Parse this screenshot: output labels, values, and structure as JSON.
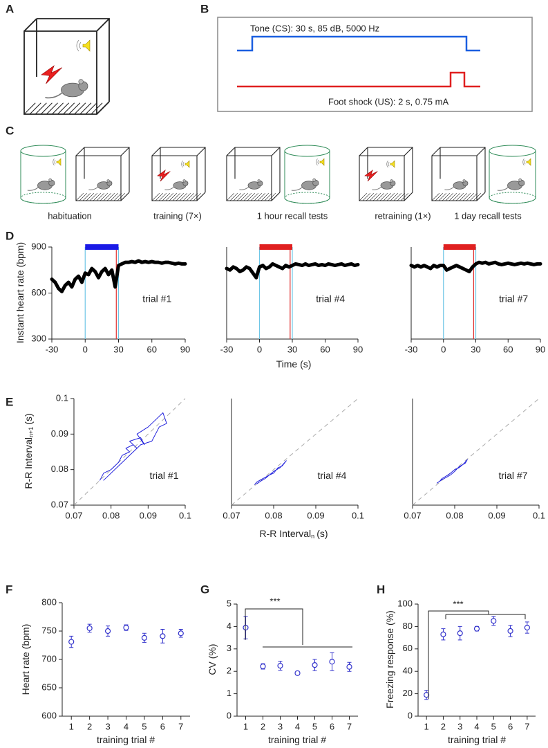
{
  "panels": [
    "A",
    "B",
    "C",
    "D",
    "E",
    "F",
    "G",
    "H"
  ],
  "diagram_b": {
    "tone_label": "Tone (CS): 30 s, 85 dB, 5000 Hz",
    "shock_label": "Foot shock (US): 2 s, 0.75 mA"
  },
  "diagram_c": {
    "labels": [
      "habituation",
      "training (7×)",
      "1 hour recall tests",
      "retraining (1×)",
      "1 day recall tests"
    ]
  },
  "chart_data": [
    {
      "type": "line",
      "label": "trial #1",
      "ylabel": "Instant heart rate (bpm)",
      "color": "#000000",
      "line_width": 5,
      "x": [
        -30,
        -27,
        -24,
        -21,
        -18,
        -15,
        -12,
        -9,
        -6,
        -3,
        0,
        3,
        6,
        9,
        12,
        15,
        18,
        21,
        24,
        27,
        30,
        33,
        36,
        39,
        42,
        45,
        48,
        51,
        54,
        57,
        60,
        63,
        66,
        69,
        72,
        75,
        78,
        81,
        84,
        87,
        90
      ],
      "values": [
        690,
        670,
        630,
        610,
        650,
        670,
        640,
        690,
        710,
        670,
        730,
        720,
        760,
        740,
        700,
        740,
        760,
        720,
        750,
        640,
        780,
        790,
        800,
        800,
        805,
        800,
        810,
        800,
        805,
        800,
        805,
        800,
        800,
        795,
        800,
        800,
        795,
        790,
        795,
        790,
        790
      ],
      "xlim": [
        -30,
        90
      ],
      "ylim": [
        300,
        900
      ],
      "xticks": [
        -30,
        0,
        30,
        60,
        90
      ],
      "yticks": [
        300,
        600,
        900
      ],
      "bar": [
        0,
        30
      ],
      "bar_color": "#1a1ae6",
      "vlines": [
        {
          "x": 0,
          "color": "#6ec6e6"
        },
        {
          "x": 28,
          "color": "#e03030"
        },
        {
          "x": 30,
          "color": "#6ec6e6"
        }
      ]
    },
    {
      "type": "line",
      "label": "trial #4",
      "xlabel": "Time (s)",
      "color": "#000000",
      "line_width": 5,
      "x": [
        -30,
        -27,
        -24,
        -21,
        -18,
        -15,
        -12,
        -9,
        -6,
        -3,
        0,
        3,
        6,
        9,
        12,
        15,
        18,
        21,
        24,
        27,
        30,
        33,
        36,
        39,
        42,
        45,
        48,
        51,
        54,
        57,
        60,
        63,
        66,
        69,
        72,
        75,
        78,
        81,
        84,
        87,
        90
      ],
      "values": [
        760,
        750,
        770,
        760,
        740,
        750,
        770,
        760,
        730,
        700,
        770,
        780,
        760,
        770,
        790,
        780,
        770,
        760,
        780,
        770,
        780,
        790,
        785,
        780,
        790,
        780,
        785,
        790,
        780,
        785,
        780,
        790,
        785,
        780,
        785,
        790,
        780,
        785,
        790,
        780,
        785
      ],
      "xlim": [
        -30,
        90
      ],
      "ylim": [
        300,
        900
      ],
      "xticks": [
        -30,
        0,
        30,
        60,
        90
      ],
      "bar": [
        0,
        30
      ],
      "bar_color": "#e02020",
      "vlines": [
        {
          "x": 0,
          "color": "#6ec6e6"
        },
        {
          "x": 28,
          "color": "#e03030"
        },
        {
          "x": 30,
          "color": "#6ec6e6"
        }
      ]
    },
    {
      "type": "line",
      "label": "trial #7",
      "color": "#000000",
      "line_width": 5,
      "x": [
        -30,
        -27,
        -24,
        -21,
        -18,
        -15,
        -12,
        -9,
        -6,
        -3,
        0,
        3,
        6,
        9,
        12,
        15,
        18,
        21,
        24,
        27,
        30,
        33,
        36,
        39,
        42,
        45,
        48,
        51,
        54,
        57,
        60,
        63,
        66,
        69,
        72,
        75,
        78,
        81,
        84,
        87,
        90
      ],
      "values": [
        780,
        770,
        780,
        770,
        780,
        770,
        760,
        780,
        770,
        780,
        780,
        750,
        760,
        770,
        780,
        770,
        760,
        750,
        740,
        770,
        790,
        800,
        795,
        800,
        790,
        795,
        800,
        790,
        785,
        790,
        795,
        790,
        785,
        790,
        795,
        790,
        795,
        790,
        785,
        790,
        790
      ],
      "xlim": [
        -30,
        90
      ],
      "ylim": [
        300,
        900
      ],
      "xticks": [
        -30,
        0,
        30,
        60,
        90
      ],
      "bar": [
        0,
        30
      ],
      "bar_color": "#e02020",
      "vlines": [
        {
          "x": 0,
          "color": "#6ec6e6"
        },
        {
          "x": 28,
          "color": "#e03030"
        },
        {
          "x": 30,
          "color": "#6ec6e6"
        }
      ]
    },
    {
      "type": "line",
      "label": "trial #1",
      "ylabel": "R-R Interval",
      "ylabel_sub": "n+1",
      "ylabel_unit": "(s)",
      "color": "#2222dd",
      "line_width": 1,
      "diagonal": true,
      "x": [
        0.077,
        0.078,
        0.08,
        0.082,
        0.083,
        0.085,
        0.084,
        0.086,
        0.087,
        0.085,
        0.088,
        0.089,
        0.087,
        0.09,
        0.092,
        0.094,
        0.095,
        0.093,
        0.091,
        0.088,
        0.086,
        0.084,
        0.082,
        0.08,
        0.078
      ],
      "values": [
        0.077,
        0.079,
        0.08,
        0.082,
        0.084,
        0.085,
        0.086,
        0.087,
        0.086,
        0.088,
        0.089,
        0.087,
        0.09,
        0.092,
        0.094,
        0.096,
        0.093,
        0.092,
        0.088,
        0.087,
        0.085,
        0.083,
        0.081,
        0.079,
        0.077
      ],
      "xlim": [
        0.07,
        0.1
      ],
      "ylim": [
        0.07,
        0.1
      ],
      "xticks": [
        0.07,
        0.08,
        0.09,
        0.1
      ],
      "yticks": [
        0.07,
        0.08,
        0.09,
        0.1
      ]
    },
    {
      "type": "line",
      "label": "trial #4",
      "xlabel": "R-R Interval",
      "xlabel_sub": "n",
      "xlabel_unit": "(s)",
      "color": "#2222dd",
      "line_width": 1,
      "diagonal": true,
      "x": [
        0.0755,
        0.076,
        0.077,
        0.078,
        0.079,
        0.08,
        0.081,
        0.082,
        0.083,
        0.0815,
        0.08,
        0.079,
        0.078,
        0.077,
        0.076
      ],
      "values": [
        0.0758,
        0.0765,
        0.0772,
        0.0778,
        0.0785,
        0.079,
        0.0805,
        0.081,
        0.0825,
        0.0805,
        0.0795,
        0.0785,
        0.0775,
        0.0768,
        0.076
      ],
      "xlim": [
        0.07,
        0.1
      ],
      "ylim": [
        0.07,
        0.1
      ],
      "xticks": [
        0.07,
        0.08,
        0.09,
        0.1
      ]
    },
    {
      "type": "line",
      "label": "trial #7",
      "color": "#2222dd",
      "line_width": 1,
      "diagonal": true,
      "x": [
        0.0758,
        0.0765,
        0.077,
        0.078,
        0.079,
        0.08,
        0.081,
        0.082,
        0.083,
        0.0825,
        0.081,
        0.08,
        0.079,
        0.078,
        0.077,
        0.0762
      ],
      "values": [
        0.0762,
        0.0768,
        0.0775,
        0.0782,
        0.079,
        0.08,
        0.0805,
        0.0815,
        0.0828,
        0.0818,
        0.0808,
        0.0795,
        0.0785,
        0.0778,
        0.0772,
        0.0765
      ],
      "xlim": [
        0.07,
        0.1
      ],
      "ylim": [
        0.07,
        0.1
      ],
      "xticks": [
        0.07,
        0.08,
        0.09,
        0.1
      ]
    },
    {
      "type": "scatter",
      "ylabel": "Heart rate (bpm)",
      "xlabel": "training trial #",
      "color": "#3333cc",
      "x": [
        1,
        2,
        3,
        4,
        5,
        6,
        7
      ],
      "values": [
        731,
        755,
        750,
        756,
        738,
        741,
        746
      ],
      "errors": [
        10,
        7,
        9,
        5,
        8,
        12,
        7
      ],
      "xlim": [
        0.5,
        7.5
      ],
      "ylim": [
        600,
        800
      ],
      "xticks": [
        1,
        2,
        3,
        4,
        5,
        6,
        7
      ],
      "yticks": [
        600,
        650,
        700,
        750,
        800
      ]
    },
    {
      "type": "scatter",
      "ylabel": "CV (%)",
      "xlabel": "training trial #",
      "color": "#3333cc",
      "annotation": "***",
      "x": [
        1,
        2,
        3,
        4,
        5,
        6,
        7
      ],
      "values": [
        3.95,
        2.22,
        2.25,
        1.92,
        2.28,
        2.43,
        2.2
      ],
      "errors": [
        0.5,
        0.12,
        0.2,
        0.08,
        0.25,
        0.4,
        0.2
      ],
      "xlim": [
        0.5,
        7.5
      ],
      "ylim": [
        0,
        5
      ],
      "xticks": [
        1,
        2,
        3,
        4,
        5,
        6,
        7
      ],
      "yticks": [
        0,
        1,
        2,
        3,
        4,
        5
      ]
    },
    {
      "type": "scatter",
      "ylabel": "Freezing response (%)",
      "xlabel": "training trial #",
      "color": "#3333cc",
      "annotation": "***",
      "x": [
        1,
        2,
        3,
        4,
        5,
        6,
        7
      ],
      "values": [
        19,
        73,
        74,
        78,
        85,
        76,
        79
      ],
      "errors": [
        4,
        5,
        6,
        2,
        4,
        5,
        5
      ],
      "xlim": [
        0.5,
        7.5
      ],
      "ylim": [
        0,
        100
      ],
      "xticks": [
        1,
        2,
        3,
        4,
        5,
        6,
        7
      ],
      "yticks": [
        0,
        20,
        40,
        60,
        80,
        100
      ]
    }
  ]
}
